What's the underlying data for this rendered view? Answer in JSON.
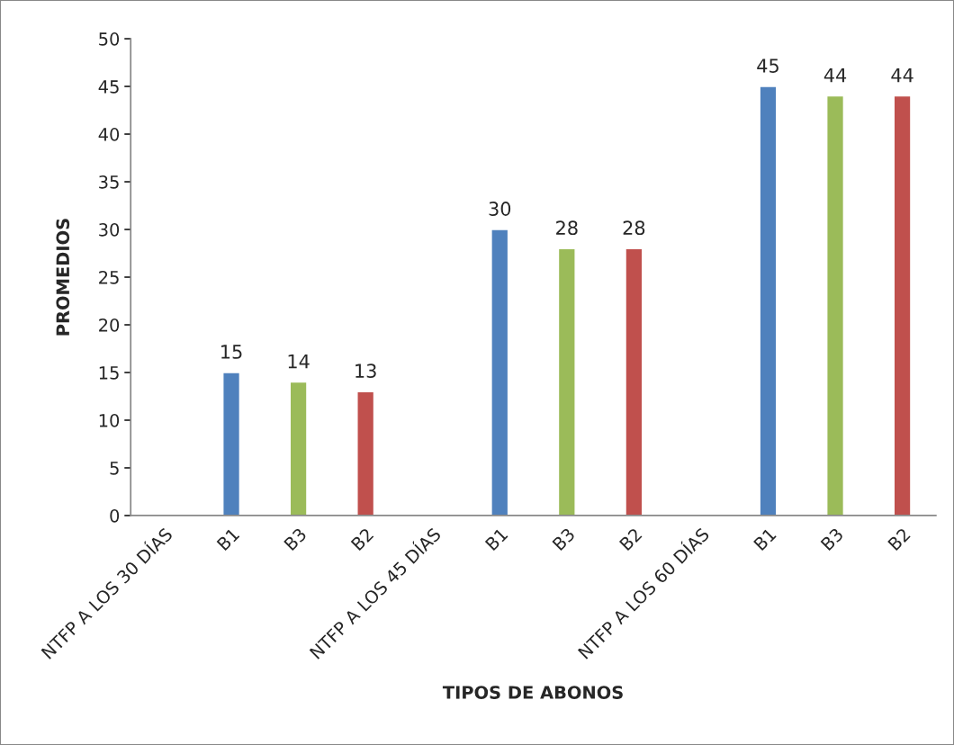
{
  "chart_data": {
    "type": "bar",
    "xlabel": "TIPOS DE ABONOS",
    "ylabel": "PROMEDIOS",
    "categories": [
      "NTFP A LOS 30 DÍAS",
      "B1",
      "B3",
      "B2",
      "NTFP A LOS 45 DÍAS",
      "B1",
      "B3",
      "B2",
      "NTFP A LOS 60 DÍAS",
      "B1",
      "B3",
      "B2"
    ],
    "values": [
      null,
      15,
      14,
      13,
      null,
      30,
      28,
      28,
      null,
      45,
      44,
      44
    ],
    "colors": [
      "#4f81bd",
      "#4f81bd",
      "#9bbb59",
      "#c0504d",
      "#4f81bd",
      "#4f81bd",
      "#9bbb59",
      "#c0504d",
      "#4f81bd",
      "#4f81bd",
      "#9bbb59",
      "#c0504d"
    ],
    "ylim": [
      0,
      50
    ],
    "yticks": [
      0,
      5,
      10,
      15,
      20,
      25,
      30,
      35,
      40,
      45,
      50
    ],
    "data_labels": true,
    "grid": false,
    "legend": false
  }
}
